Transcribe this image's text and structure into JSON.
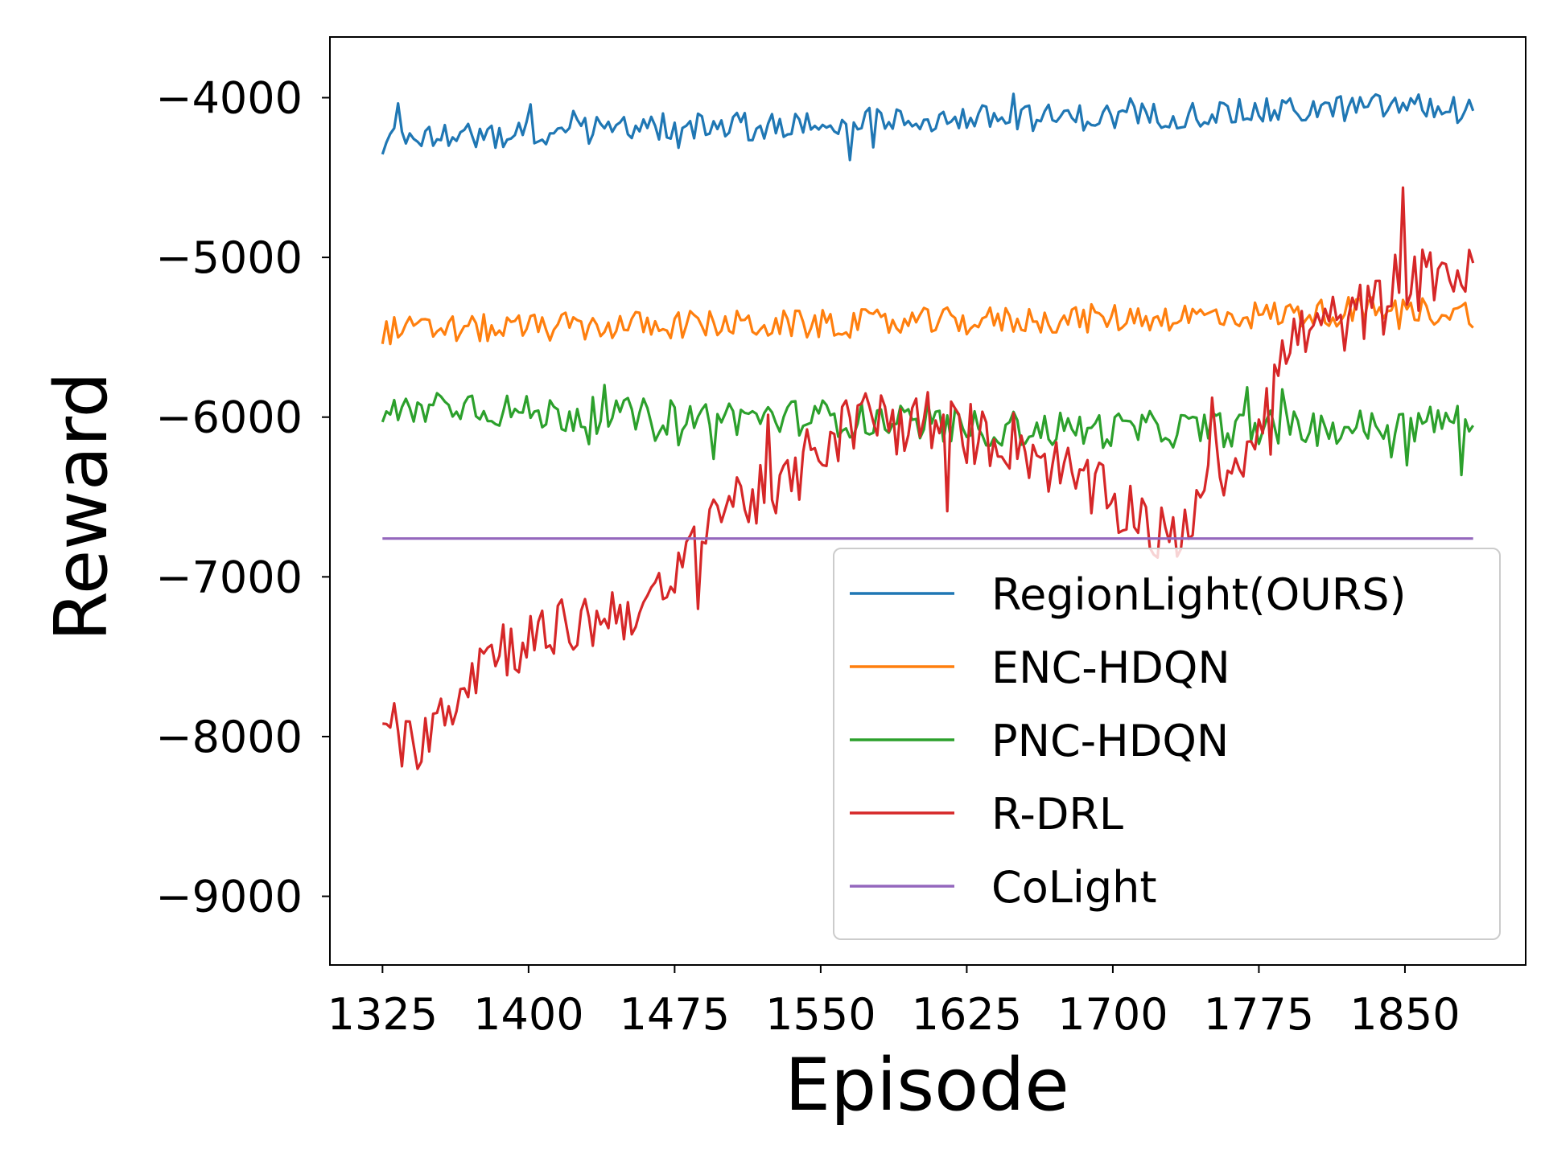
{
  "chart_data": {
    "type": "line",
    "title": "",
    "xlabel": "Episode",
    "ylabel": "Reward",
    "xlim": [
      1298,
      1912
    ],
    "ylim": [
      -9430,
      -3620
    ],
    "x_ticks": [
      1325,
      1400,
      1475,
      1550,
      1625,
      1700,
      1775,
      1850
    ],
    "y_ticks": [
      -4000,
      -5000,
      -6000,
      -7000,
      -8000,
      -9000
    ],
    "x_tick_labels": [
      "1325",
      "1400",
      "1475",
      "1550",
      "1625",
      "1700",
      "1775",
      "1850"
    ],
    "y_tick_labels": [
      "−4000",
      "−5000",
      "−6000",
      "−7000",
      "−8000",
      "−9000"
    ],
    "grid": false,
    "legend_position": "lower-right",
    "x_start": 1325,
    "x_end": 1885,
    "x_step": 2,
    "series": [
      {
        "name": "RegionLight(OURS)",
        "color": "#1f77b4",
        "anchors": [
          [
            1325,
            -4270
          ],
          [
            1400,
            -4220
          ],
          [
            1475,
            -4180
          ],
          [
            1550,
            -4170
          ],
          [
            1625,
            -4130
          ],
          [
            1700,
            -4120
          ],
          [
            1775,
            -4090
          ],
          [
            1850,
            -4050
          ],
          [
            1885,
            -4080
          ]
        ],
        "noise": 85
      },
      {
        "name": "ENC-HDQN",
        "color": "#ff7f0e",
        "anchors": [
          [
            1325,
            -5460
          ],
          [
            1400,
            -5440
          ],
          [
            1475,
            -5420
          ],
          [
            1550,
            -5420
          ],
          [
            1625,
            -5400
          ],
          [
            1700,
            -5380
          ],
          [
            1775,
            -5360
          ],
          [
            1850,
            -5330
          ],
          [
            1885,
            -5350
          ]
        ],
        "noise": 90
      },
      {
        "name": "PNC-HDQN",
        "color": "#2ca02c",
        "anchors": [
          [
            1325,
            -6000
          ],
          [
            1360,
            -5900
          ],
          [
            1400,
            -5980
          ],
          [
            1475,
            -6000
          ],
          [
            1550,
            -6000
          ],
          [
            1625,
            -6070
          ],
          [
            1700,
            -6080
          ],
          [
            1775,
            -6070
          ],
          [
            1850,
            -6060
          ],
          [
            1885,
            -6000
          ]
        ],
        "noise": 115
      },
      {
        "name": "R-DRL",
        "color": "#d62728",
        "anchors": [
          [
            1325,
            -8100
          ],
          [
            1340,
            -8050
          ],
          [
            1355,
            -7850
          ],
          [
            1380,
            -7450
          ],
          [
            1400,
            -7400
          ],
          [
            1425,
            -7300
          ],
          [
            1450,
            -7200
          ],
          [
            1470,
            -7150
          ],
          [
            1480,
            -6950
          ],
          [
            1490,
            -6600
          ],
          [
            1510,
            -6500
          ],
          [
            1530,
            -6500
          ],
          [
            1550,
            -6150
          ],
          [
            1575,
            -6000
          ],
          [
            1600,
            -6050
          ],
          [
            1625,
            -6100
          ],
          [
            1650,
            -6150
          ],
          [
            1675,
            -6350
          ],
          [
            1695,
            -6500
          ],
          [
            1715,
            -6600
          ],
          [
            1725,
            -6750
          ],
          [
            1735,
            -6800
          ],
          [
            1748,
            -6300
          ],
          [
            1760,
            -6350
          ],
          [
            1775,
            -6000
          ],
          [
            1790,
            -5550
          ],
          [
            1800,
            -5450
          ],
          [
            1820,
            -5400
          ],
          [
            1845,
            -5250
          ],
          [
            1870,
            -5050
          ],
          [
            1885,
            -5150
          ]
        ],
        "noise": 200
      },
      {
        "name": "CoLight",
        "color": "#9467bd",
        "anchors": [
          [
            1325,
            -6760
          ],
          [
            1885,
            -6760
          ]
        ],
        "noise": 0
      }
    ]
  }
}
